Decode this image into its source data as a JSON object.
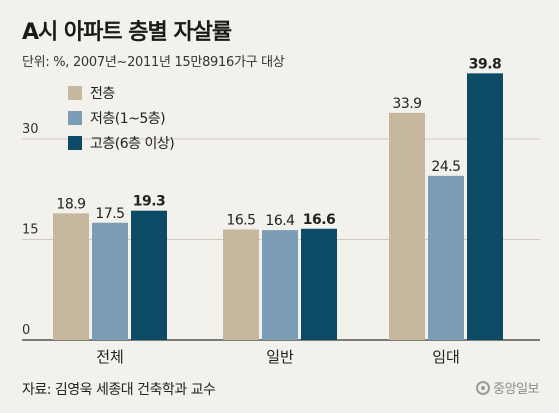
{
  "title": "A시 아파트 층별 자살률",
  "subtitle": "단위: %, 2007년~2011년 15만8916가구 대상",
  "source": "자료: 김영욱 세종대 건축학과 교수",
  "brand": "중앙일보",
  "colors": {
    "bg": "#f3f1ec",
    "all_floors": "#c7b79e",
    "low_floors": "#7c9db6",
    "high_floors": "#0d4a66",
    "axis": "#333333",
    "grid": "#cfcac2"
  },
  "chart_data": {
    "type": "bar",
    "categories": [
      "전체",
      "일반",
      "임대"
    ],
    "series": [
      {
        "name": "전층",
        "values": [
          18.9,
          16.5,
          33.9
        ],
        "color": "#c7b79e",
        "bold_labels": false
      },
      {
        "name": "저층(1~5층)",
        "values": [
          17.5,
          16.4,
          24.5
        ],
        "color": "#7c9db6",
        "bold_labels": false
      },
      {
        "name": "고층(6층 이상)",
        "values": [
          19.3,
          16.6,
          39.8
        ],
        "color": "#0d4a66",
        "bold_labels": true
      }
    ],
    "yticks": [
      0,
      15,
      30
    ],
    "ylim": [
      0,
      40
    ],
    "grid": true,
    "legend_position": "top-left"
  }
}
